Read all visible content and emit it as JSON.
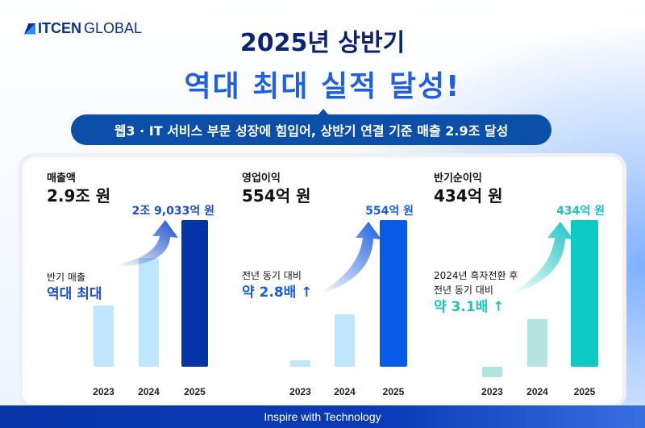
{
  "brand": {
    "logo_bold": "ITCEN",
    "logo_light": "GLOBAL"
  },
  "header": {
    "title_line1": "2025년 상반기",
    "title_line2": "역대 최대 실적 달성!",
    "subtitle": "웹3 · IT 서비스 부문 성장에 힘입어, 상반기 연결 기준 매출 2.9조 달성"
  },
  "footer": {
    "tagline": "Inspire with Technology"
  },
  "chart_data": [
    {
      "type": "bar",
      "title": "매출액",
      "headline": "2.9조 원",
      "unit": "억 원",
      "categories": [
        "2023",
        "2024",
        "2025"
      ],
      "values": [
        12100,
        21500,
        29033
      ],
      "label_2025": "2조 9,033억 원",
      "note": [
        "반기 매출",
        "역대 최대"
      ],
      "colors": [
        "#bfe6fb",
        "#bfe6fb",
        "#0534a8"
      ],
      "accent": "#1a4fc9"
    },
    {
      "type": "bar",
      "title": "영업이익",
      "headline": "554억 원",
      "unit": "억 원",
      "categories": [
        "2023",
        "2024",
        "2025"
      ],
      "values": [
        24,
        198,
        554
      ],
      "label_2025": "554억 원",
      "note": [
        "전년 동기 대비",
        "약 2.8배 ↑"
      ],
      "colors": [
        "#bfe6fb",
        "#bfe6fb",
        "#0a5ae8"
      ],
      "accent": "#1a5fe0"
    },
    {
      "type": "bar",
      "title": "반기순이익",
      "headline": "434억 원",
      "unit": "억 원",
      "categories": [
        "2023",
        "2024",
        "2025"
      ],
      "values": [
        -31,
        140,
        434
      ],
      "label_2025": "434억 원",
      "note": [
        "2024년 흑자전환 후",
        "전년 동기 대비",
        "약 3.1배 ↑"
      ],
      "colors": [
        "#b5e3df",
        "#b5e3df",
        "#0ccbc7"
      ],
      "accent": "#19c4c2"
    }
  ]
}
